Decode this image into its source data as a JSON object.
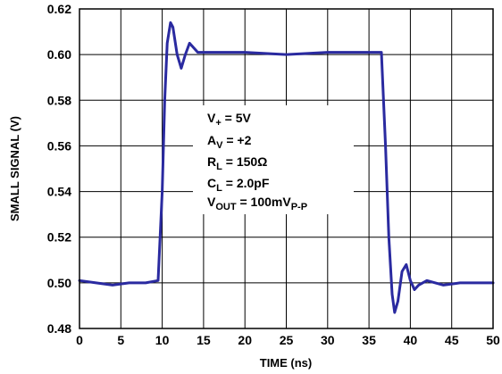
{
  "chart_data": {
    "type": "line",
    "xlabel": "TIME (ns)",
    "ylabel": "SMALL SIGNAL (V)",
    "xlim": [
      0,
      50
    ],
    "ylim": [
      0.48,
      0.62
    ],
    "xticks": [
      0,
      5,
      10,
      15,
      20,
      25,
      30,
      35,
      40,
      45,
      50
    ],
    "yticks": [
      0.48,
      0.5,
      0.52,
      0.54,
      0.56,
      0.58,
      0.6,
      0.62
    ],
    "ytick_labels": [
      "0.48",
      "0.50",
      "0.52",
      "0.54",
      "0.56",
      "0.58",
      "0.60",
      "0.62"
    ],
    "grid": true,
    "line_color": "#2a2aa0",
    "series": [
      {
        "x": [
          0,
          2,
          4,
          6,
          8,
          9.5,
          10,
          10.3,
          10.6,
          11.0,
          11.3,
          11.8,
          12.3,
          12.8,
          13.3,
          13.8,
          14.3,
          15,
          16,
          18,
          20,
          25,
          30,
          35,
          36.5,
          37.0,
          37.4,
          37.8,
          38.1,
          38.5,
          39.0,
          39.5,
          40.0,
          40.5,
          41.0,
          42,
          44,
          46,
          48,
          50
        ],
        "y": [
          0.501,
          0.5,
          0.499,
          0.5,
          0.5,
          0.501,
          0.54,
          0.58,
          0.605,
          0.614,
          0.612,
          0.6,
          0.594,
          0.6,
          0.605,
          0.603,
          0.601,
          0.601,
          0.601,
          0.601,
          0.601,
          0.6,
          0.601,
          0.601,
          0.601,
          0.56,
          0.52,
          0.495,
          0.487,
          0.492,
          0.505,
          0.508,
          0.501,
          0.497,
          0.499,
          0.501,
          0.499,
          0.5,
          0.5,
          0.5
        ]
      }
    ]
  },
  "annotation": {
    "vplus": {
      "main": "V",
      "sub": "+",
      "rest": " = 5V"
    },
    "av": {
      "main": "A",
      "sub": "V",
      "rest": " = +2"
    },
    "rl": {
      "main": "R",
      "sub": "L",
      "rest": " = 150Ω"
    },
    "cl": {
      "main": "C",
      "sub": "L",
      "rest": " = 2.0pF"
    },
    "vout": {
      "main": "V",
      "sub": "OUT",
      "rest": " = 100mV",
      "sub2": "P-P"
    }
  }
}
